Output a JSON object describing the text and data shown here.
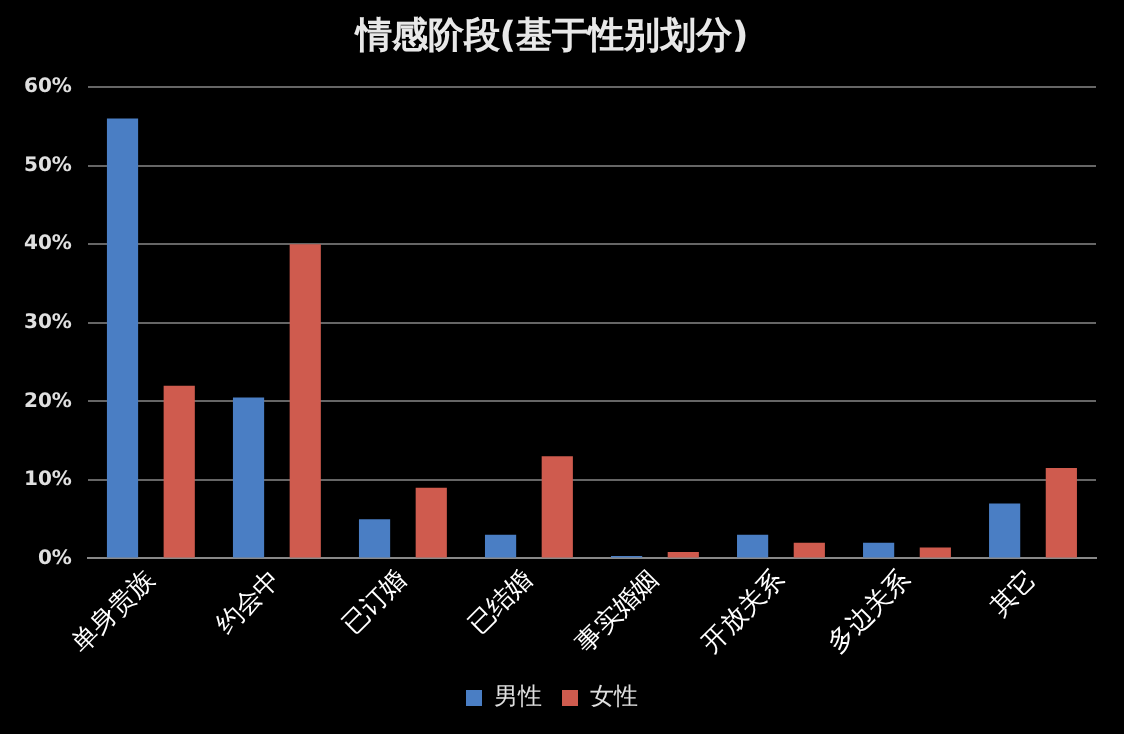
{
  "chart_data": {
    "type": "bar",
    "title": "情感阶段(基于性别划分)",
    "categories": [
      "单身贵族",
      "约会中",
      "已订婚",
      "已结婚",
      "事实婚姻",
      "开放关系",
      "多边关系",
      "其它"
    ],
    "series": [
      {
        "name": "男性",
        "color": "#4a7ec4",
        "values": [
          56,
          20.5,
          5,
          3,
          0.3,
          3,
          2,
          7
        ]
      },
      {
        "name": "女性",
        "color": "#cf5b4e",
        "values": [
          22,
          40,
          9,
          13,
          0.8,
          2,
          1.4,
          11.5
        ]
      }
    ],
    "ylim": [
      0,
      60
    ],
    "yticks": [
      {
        "value": 0,
        "label": "0%"
      },
      {
        "value": 10,
        "label": "10%"
      },
      {
        "value": 20,
        "label": "20%"
      },
      {
        "value": 30,
        "label": "30%"
      },
      {
        "value": 40,
        "label": "40%"
      },
      {
        "value": 50,
        "label": "50%"
      },
      {
        "value": 60,
        "label": "60%"
      }
    ],
    "grid": "y",
    "legend": "bottom"
  }
}
